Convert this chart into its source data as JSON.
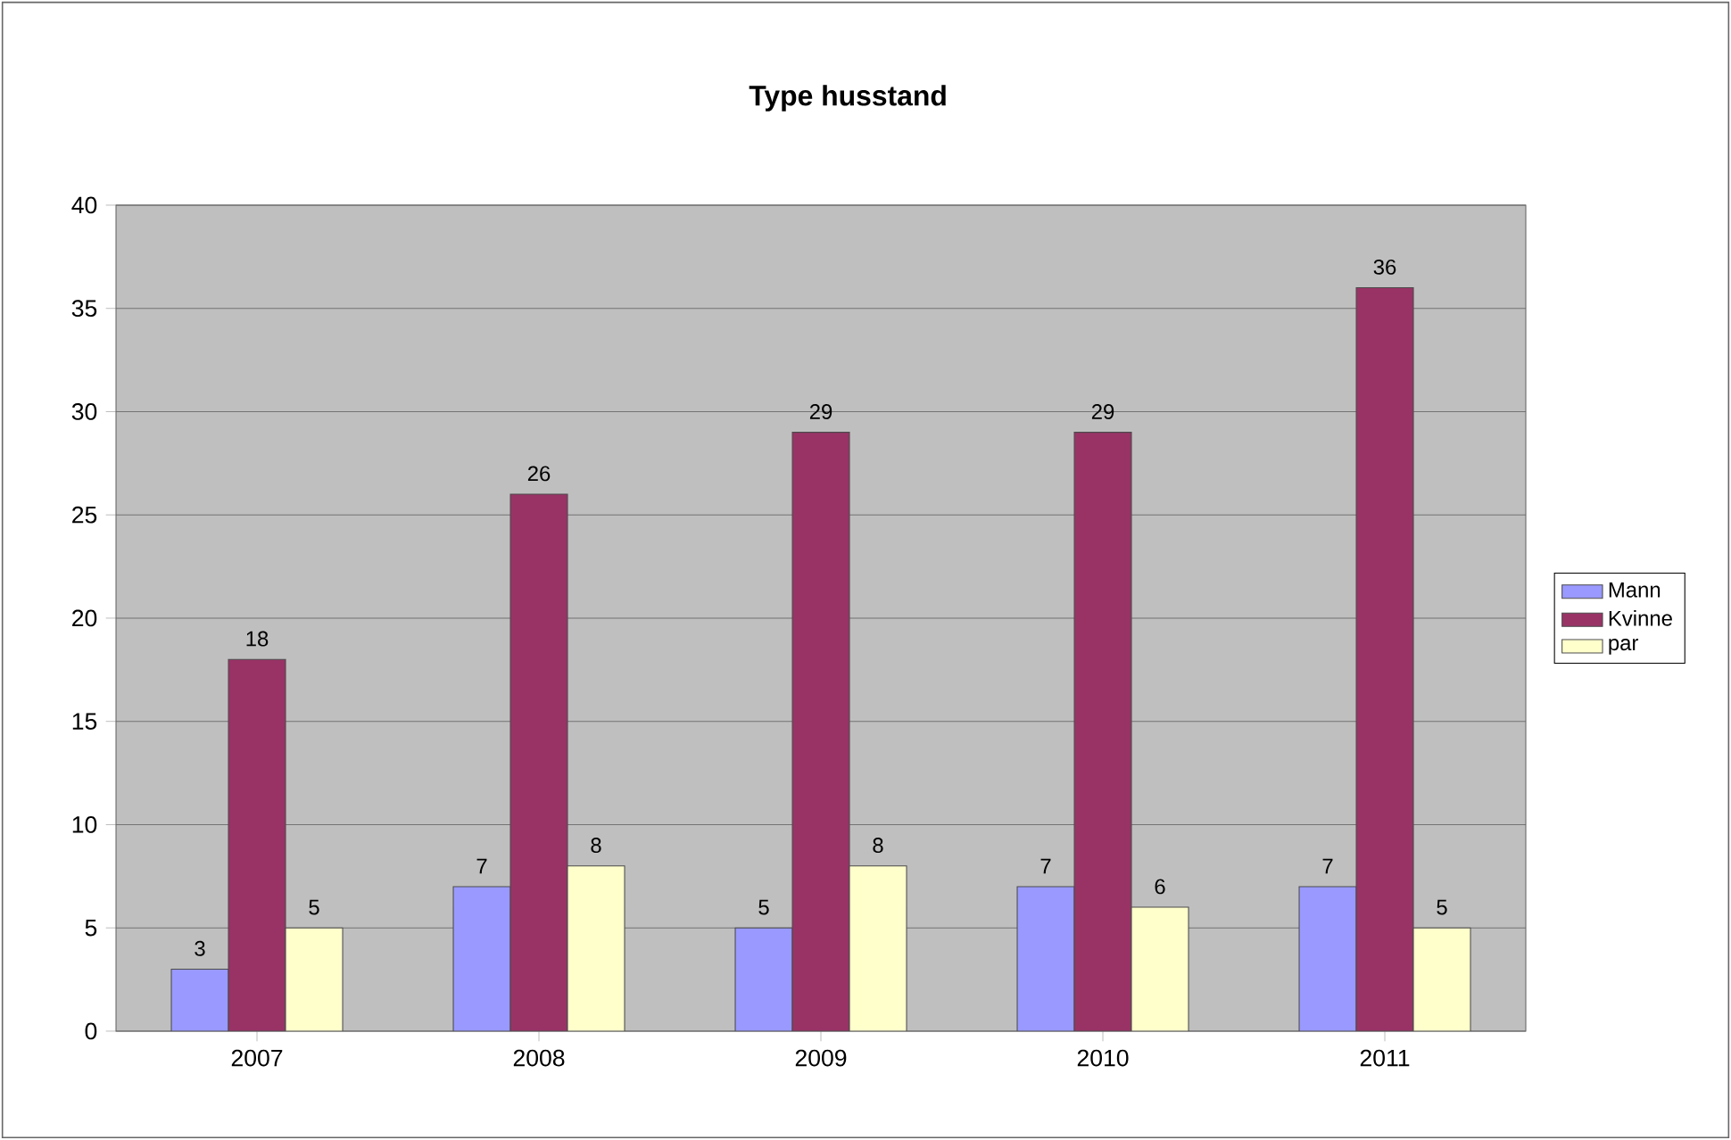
{
  "chart_data": {
    "type": "bar",
    "title": "Type husstand",
    "categories": [
      "2007",
      "2008",
      "2009",
      "2010",
      "2011"
    ],
    "series": [
      {
        "name": "Mann",
        "color": "#9999ff",
        "values": [
          3,
          7,
          5,
          7,
          7
        ]
      },
      {
        "name": "Kvinne",
        "color": "#993366",
        "values": [
          18,
          26,
          29,
          29,
          36
        ]
      },
      {
        "name": "par",
        "color": "#ffffcc",
        "values": [
          5,
          8,
          8,
          6,
          5
        ]
      }
    ],
    "ylim": [
      0,
      40
    ],
    "yticks": [
      0,
      5,
      10,
      15,
      20,
      25,
      30,
      35,
      40
    ],
    "grid": "y",
    "legend": "right",
    "data_labels": true
  }
}
